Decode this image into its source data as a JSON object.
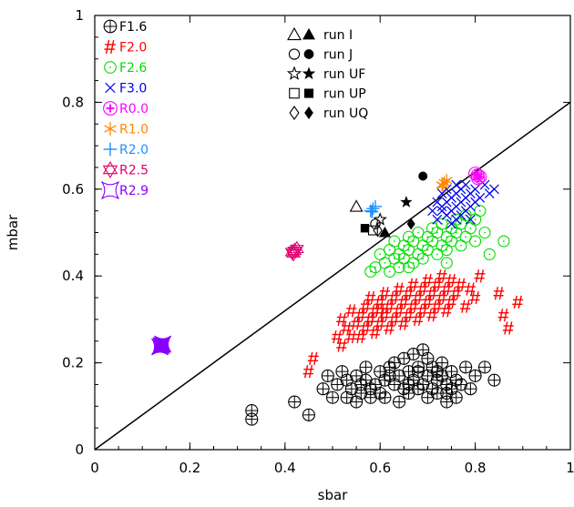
{
  "chart_data": {
    "type": "scatter",
    "xlabel": "sbar",
    "ylabel": "mbar",
    "xlim": [
      0,
      1
    ],
    "ylim": [
      0,
      1
    ],
    "xticks": [
      "0",
      "0.2",
      "0.4",
      "0.6",
      "0.8",
      "1"
    ],
    "yticks": [
      "0",
      "0.2",
      "0.4",
      "0.6",
      "0.8",
      "1"
    ],
    "grid": false,
    "reference_line": {
      "from": [
        0,
        0
      ],
      "to": [
        1,
        0.8
      ],
      "color": "#000000"
    },
    "series": [
      {
        "name": "F1.6",
        "marker": "circle-plus",
        "color": "#000000",
        "points": [
          [
            0.33,
            0.09
          ],
          [
            0.33,
            0.07
          ],
          [
            0.42,
            0.11
          ],
          [
            0.45,
            0.08
          ],
          [
            0.48,
            0.14
          ],
          [
            0.49,
            0.17
          ],
          [
            0.5,
            0.12
          ],
          [
            0.51,
            0.15
          ],
          [
            0.52,
            0.18
          ],
          [
            0.53,
            0.12
          ],
          [
            0.53,
            0.16
          ],
          [
            0.54,
            0.14
          ],
          [
            0.55,
            0.17
          ],
          [
            0.55,
            0.11
          ],
          [
            0.56,
            0.13
          ],
          [
            0.57,
            0.16
          ],
          [
            0.57,
            0.19
          ],
          [
            0.58,
            0.12
          ],
          [
            0.59,
            0.15
          ],
          [
            0.6,
            0.18
          ],
          [
            0.6,
            0.13
          ],
          [
            0.61,
            0.16
          ],
          [
            0.61,
            0.12
          ],
          [
            0.62,
            0.19
          ],
          [
            0.63,
            0.15
          ],
          [
            0.63,
            0.2
          ],
          [
            0.64,
            0.11
          ],
          [
            0.64,
            0.17
          ],
          [
            0.65,
            0.14
          ],
          [
            0.65,
            0.21
          ],
          [
            0.66,
            0.13
          ],
          [
            0.66,
            0.18
          ],
          [
            0.67,
            0.16
          ],
          [
            0.67,
            0.22
          ],
          [
            0.68,
            0.14
          ],
          [
            0.68,
            0.19
          ],
          [
            0.69,
            0.23
          ],
          [
            0.69,
            0.15
          ],
          [
            0.7,
            0.12
          ],
          [
            0.7,
            0.17
          ],
          [
            0.7,
            0.21
          ],
          [
            0.71,
            0.14
          ],
          [
            0.71,
            0.19
          ],
          [
            0.72,
            0.16
          ],
          [
            0.72,
            0.13
          ],
          [
            0.73,
            0.2
          ],
          [
            0.73,
            0.17
          ],
          [
            0.74,
            0.15
          ],
          [
            0.74,
            0.11
          ],
          [
            0.75,
            0.18
          ],
          [
            0.75,
            0.14
          ],
          [
            0.76,
            0.16
          ],
          [
            0.76,
            0.12
          ],
          [
            0.77,
            0.15
          ],
          [
            0.78,
            0.19
          ],
          [
            0.79,
            0.14
          ],
          [
            0.8,
            0.17
          ],
          [
            0.82,
            0.19
          ],
          [
            0.84,
            0.16
          ],
          [
            0.68,
            0.18
          ],
          [
            0.62,
            0.17
          ],
          [
            0.58,
            0.14
          ],
          [
            0.56,
            0.15
          ],
          [
            0.66,
            0.15
          ],
          [
            0.72,
            0.18
          ],
          [
            0.74,
            0.13
          ]
        ]
      },
      {
        "name": "F2.0",
        "marker": "hash",
        "color": "#ff0000",
        "points": [
          [
            0.46,
            0.21
          ],
          [
            0.45,
            0.18
          ],
          [
            0.51,
            0.26
          ],
          [
            0.52,
            0.24
          ],
          [
            0.52,
            0.3
          ],
          [
            0.53,
            0.28
          ],
          [
            0.54,
            0.26
          ],
          [
            0.54,
            0.32
          ],
          [
            0.55,
            0.29
          ],
          [
            0.56,
            0.31
          ],
          [
            0.56,
            0.26
          ],
          [
            0.57,
            0.33
          ],
          [
            0.57,
            0.28
          ],
          [
            0.58,
            0.3
          ],
          [
            0.58,
            0.35
          ],
          [
            0.59,
            0.27
          ],
          [
            0.59,
            0.32
          ],
          [
            0.6,
            0.29
          ],
          [
            0.6,
            0.34
          ],
          [
            0.61,
            0.31
          ],
          [
            0.61,
            0.36
          ],
          [
            0.62,
            0.28
          ],
          [
            0.62,
            0.33
          ],
          [
            0.63,
            0.3
          ],
          [
            0.63,
            0.35
          ],
          [
            0.64,
            0.32
          ],
          [
            0.64,
            0.37
          ],
          [
            0.65,
            0.29
          ],
          [
            0.65,
            0.34
          ],
          [
            0.66,
            0.31
          ],
          [
            0.66,
            0.36
          ],
          [
            0.67,
            0.33
          ],
          [
            0.67,
            0.38
          ],
          [
            0.68,
            0.3
          ],
          [
            0.68,
            0.35
          ],
          [
            0.69,
            0.32
          ],
          [
            0.69,
            0.37
          ],
          [
            0.7,
            0.34
          ],
          [
            0.7,
            0.39
          ],
          [
            0.71,
            0.31
          ],
          [
            0.71,
            0.36
          ],
          [
            0.72,
            0.33
          ],
          [
            0.72,
            0.38
          ],
          [
            0.73,
            0.35
          ],
          [
            0.73,
            0.4
          ],
          [
            0.74,
            0.32
          ],
          [
            0.74,
            0.37
          ],
          [
            0.75,
            0.34
          ],
          [
            0.75,
            0.39
          ],
          [
            0.76,
            0.36
          ],
          [
            0.77,
            0.38
          ],
          [
            0.78,
            0.33
          ],
          [
            0.79,
            0.37
          ],
          [
            0.8,
            0.35
          ],
          [
            0.81,
            0.4
          ],
          [
            0.85,
            0.36
          ],
          [
            0.87,
            0.28
          ],
          [
            0.89,
            0.34
          ],
          [
            0.86,
            0.31
          ],
          [
            0.6,
            0.32
          ],
          [
            0.58,
            0.3
          ]
        ]
      },
      {
        "name": "F2.6",
        "marker": "circle-dot",
        "color": "#00dd00",
        "points": [
          [
            0.58,
            0.41
          ],
          [
            0.59,
            0.42
          ],
          [
            0.6,
            0.45
          ],
          [
            0.61,
            0.43
          ],
          [
            0.62,
            0.46
          ],
          [
            0.62,
            0.41
          ],
          [
            0.63,
            0.44
          ],
          [
            0.63,
            0.48
          ],
          [
            0.64,
            0.45
          ],
          [
            0.64,
            0.42
          ],
          [
            0.65,
            0.47
          ],
          [
            0.65,
            0.44
          ],
          [
            0.66,
            0.49
          ],
          [
            0.66,
            0.46
          ],
          [
            0.67,
            0.43
          ],
          [
            0.67,
            0.48
          ],
          [
            0.68,
            0.45
          ],
          [
            0.68,
            0.5
          ],
          [
            0.69,
            0.47
          ],
          [
            0.69,
            0.44
          ],
          [
            0.7,
            0.49
          ],
          [
            0.7,
            0.46
          ],
          [
            0.71,
            0.51
          ],
          [
            0.71,
            0.48
          ],
          [
            0.72,
            0.45
          ],
          [
            0.72,
            0.5
          ],
          [
            0.73,
            0.47
          ],
          [
            0.73,
            0.52
          ],
          [
            0.74,
            0.49
          ],
          [
            0.74,
            0.46
          ],
          [
            0.75,
            0.51
          ],
          [
            0.75,
            0.48
          ],
          [
            0.76,
            0.53
          ],
          [
            0.76,
            0.5
          ],
          [
            0.77,
            0.47
          ],
          [
            0.77,
            0.52
          ],
          [
            0.78,
            0.49
          ],
          [
            0.78,
            0.54
          ],
          [
            0.79,
            0.51
          ],
          [
            0.8,
            0.48
          ],
          [
            0.8,
            0.53
          ],
          [
            0.81,
            0.55
          ],
          [
            0.82,
            0.5
          ],
          [
            0.83,
            0.45
          ],
          [
            0.86,
            0.48
          ],
          [
            0.74,
            0.43
          ],
          [
            0.66,
            0.42
          ]
        ]
      },
      {
        "name": "F3.0",
        "marker": "x",
        "color": "#0000ee",
        "points": [
          [
            0.71,
            0.55
          ],
          [
            0.72,
            0.57
          ],
          [
            0.72,
            0.53
          ],
          [
            0.73,
            0.56
          ],
          [
            0.73,
            0.59
          ],
          [
            0.74,
            0.54
          ],
          [
            0.74,
            0.57
          ],
          [
            0.74,
            0.6
          ],
          [
            0.75,
            0.55
          ],
          [
            0.75,
            0.58
          ],
          [
            0.75,
            0.52
          ],
          [
            0.76,
            0.56
          ],
          [
            0.76,
            0.59
          ],
          [
            0.76,
            0.61
          ],
          [
            0.77,
            0.54
          ],
          [
            0.77,
            0.57
          ],
          [
            0.77,
            0.6
          ],
          [
            0.78,
            0.55
          ],
          [
            0.78,
            0.58
          ],
          [
            0.78,
            0.61
          ],
          [
            0.79,
            0.56
          ],
          [
            0.79,
            0.59
          ],
          [
            0.79,
            0.53
          ],
          [
            0.8,
            0.57
          ],
          [
            0.8,
            0.6
          ],
          [
            0.81,
            0.58
          ],
          [
            0.82,
            0.61
          ],
          [
            0.84,
            0.6
          ],
          [
            0.83,
            0.59
          ],
          [
            0.73,
            0.55
          ],
          [
            0.76,
            0.53
          ]
        ]
      },
      {
        "name": "R0.0",
        "marker": "circle-cross",
        "color": "#ff00ff",
        "points": [
          [
            0.805,
            0.632
          ],
          [
            0.81,
            0.628
          ],
          [
            0.8,
            0.636
          ],
          [
            0.806,
            0.625
          ]
        ]
      },
      {
        "name": "R1.0",
        "marker": "asterisk",
        "color": "#ff8800",
        "points": [
          [
            0.735,
            0.615
          ],
          [
            0.73,
            0.61
          ],
          [
            0.74,
            0.62
          ],
          [
            0.732,
            0.608
          ]
        ]
      },
      {
        "name": "R2.0",
        "marker": "plus",
        "color": "#1e90ff",
        "points": [
          [
            0.585,
            0.555
          ],
          [
            0.58,
            0.55
          ],
          [
            0.59,
            0.56
          ],
          [
            0.583,
            0.548
          ]
        ]
      },
      {
        "name": "R2.5",
        "marker": "star-of-david",
        "color": "#e0006f",
        "points": [
          [
            0.42,
            0.458
          ],
          [
            0.415,
            0.455
          ],
          [
            0.425,
            0.462
          ],
          [
            0.418,
            0.452
          ]
        ]
      },
      {
        "name": "R2.9",
        "marker": "concave-square",
        "color": "#8800ff",
        "points": [
          [
            0.14,
            0.24
          ],
          [
            0.137,
            0.237
          ],
          [
            0.143,
            0.243
          ]
        ]
      }
    ],
    "runs": [
      {
        "name": "run I",
        "marker": "triangle",
        "open": [
          0.55,
          0.56
        ],
        "filled": [
          0.61,
          0.5
        ]
      },
      {
        "name": "run J",
        "marker": "circle",
        "open": [
          0.59,
          0.52
        ],
        "filled": [
          0.69,
          0.63
        ]
      },
      {
        "name": "run UF",
        "marker": "star",
        "open": [
          0.6,
          0.53
        ],
        "filled": [
          0.655,
          0.57
        ]
      },
      {
        "name": "run UP",
        "marker": "square",
        "open": [
          0.585,
          0.505
        ],
        "filled": [
          0.568,
          0.51
        ]
      },
      {
        "name": "run UQ",
        "marker": "diamond",
        "open": [
          0.595,
          0.505
        ],
        "filled": [
          0.665,
          0.52
        ]
      }
    ]
  }
}
